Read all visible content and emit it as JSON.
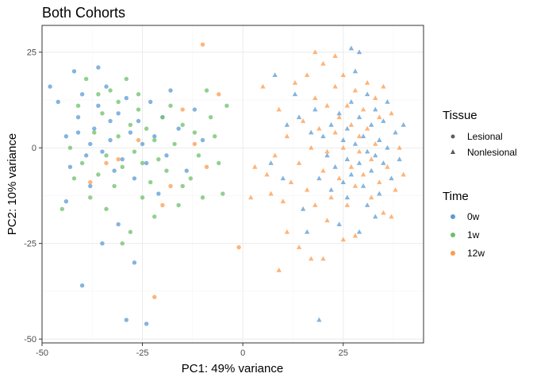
{
  "chart_data": {
    "type": "scatter",
    "title": "Both Cohorts",
    "xlabel": "PC1: 49% variance",
    "ylabel": "PC2: 10% variance",
    "xlim": [
      -50,
      45
    ],
    "ylim": [
      -51,
      32
    ],
    "x_ticks": [
      -50,
      -25,
      0,
      25
    ],
    "y_ticks": [
      -50,
      -25,
      0,
      25
    ],
    "x_tick_labels": [
      "-50",
      "-25",
      "0",
      "25"
    ],
    "y_tick_labels": [
      "-50",
      "-25",
      "0",
      "25"
    ],
    "grid": true,
    "legend_position": "right",
    "legend": {
      "shape_title": "Tissue",
      "shape_entries": [
        {
          "label": "Lesional",
          "shape": "circle"
        },
        {
          "label": "Nonlesional",
          "shape": "triangle"
        }
      ],
      "color_title": "Time",
      "color_entries": [
        {
          "label": "0w",
          "color": "#5b9bd1"
        },
        {
          "label": "1w",
          "color": "#6cc06a"
        },
        {
          "label": "12w",
          "color": "#fd9b4e"
        }
      ]
    },
    "series": [
      {
        "name": "0w",
        "color": "#5b9bd1",
        "points": [
          [
            -48,
            16,
            "circle"
          ],
          [
            -46,
            12,
            "circle"
          ],
          [
            -44,
            3,
            "circle"
          ],
          [
            -43,
            -5,
            "circle"
          ],
          [
            -42,
            20,
            "circle"
          ],
          [
            -41,
            8,
            "circle"
          ],
          [
            -40,
            14,
            "circle"
          ],
          [
            -39,
            -2,
            "circle"
          ],
          [
            -38,
            -10,
            "circle"
          ],
          [
            -37,
            5,
            "circle"
          ],
          [
            -36,
            11,
            "circle"
          ],
          [
            -35,
            -1,
            "circle"
          ],
          [
            -34,
            16,
            "circle"
          ],
          [
            -33,
            2,
            "circle"
          ],
          [
            -32,
            -6,
            "circle"
          ],
          [
            -31,
            9,
            "circle"
          ],
          [
            -30,
            -3,
            "circle"
          ],
          [
            -29,
            13,
            "circle"
          ],
          [
            -28,
            4,
            "circle"
          ],
          [
            -27,
            -8,
            "circle"
          ],
          [
            -26,
            7,
            "circle"
          ],
          [
            -25,
            1,
            "circle"
          ],
          [
            -24,
            -4,
            "circle"
          ],
          [
            -23,
            12,
            "circle"
          ],
          [
            -22,
            3,
            "circle"
          ],
          [
            -21,
            -12,
            "circle"
          ],
          [
            -20,
            8,
            "circle"
          ],
          [
            -19,
            -2,
            "circle"
          ],
          [
            -18,
            15,
            "circle"
          ],
          [
            -16,
            5,
            "circle"
          ],
          [
            -14,
            -6,
            "circle"
          ],
          [
            -12,
            10,
            "circle"
          ],
          [
            -10,
            2,
            "circle"
          ],
          [
            -40,
            -36,
            "circle"
          ],
          [
            -29,
            -45,
            "circle"
          ],
          [
            -24,
            -46,
            "circle"
          ],
          [
            -35,
            -25,
            "circle"
          ],
          [
            -27,
            -30,
            "circle"
          ],
          [
            -31,
            -20,
            "circle"
          ],
          [
            -44,
            -14,
            "circle"
          ],
          [
            -36,
            21,
            "circle"
          ],
          [
            -33,
            7,
            "circle"
          ],
          [
            -38,
            1,
            "circle"
          ],
          [
            -41,
            4,
            "circle"
          ],
          [
            7,
            -4,
            "triangle"
          ],
          [
            10,
            -8,
            "triangle"
          ],
          [
            13,
            14,
            "triangle"
          ],
          [
            15,
            -16,
            "triangle"
          ],
          [
            17,
            4,
            "triangle"
          ],
          [
            18,
            10,
            "triangle"
          ],
          [
            19,
            -8,
            "triangle"
          ],
          [
            20,
            3,
            "triangle"
          ],
          [
            21,
            -2,
            "triangle"
          ],
          [
            22,
            6,
            "triangle"
          ],
          [
            23,
            -5,
            "triangle"
          ],
          [
            24,
            9,
            "triangle"
          ],
          [
            25,
            -9,
            "triangle"
          ],
          [
            25,
            2,
            "triangle"
          ],
          [
            26,
            5,
            "triangle"
          ],
          [
            26,
            -3,
            "triangle"
          ],
          [
            27,
            12,
            "triangle"
          ],
          [
            27,
            -7,
            "triangle"
          ],
          [
            28,
            1,
            "triangle"
          ],
          [
            28,
            20,
            "triangle"
          ],
          [
            29,
            -4,
            "triangle"
          ],
          [
            29,
            8,
            "triangle"
          ],
          [
            30,
            -10,
            "triangle"
          ],
          [
            30,
            3,
            "triangle"
          ],
          [
            31,
            -1,
            "triangle"
          ],
          [
            31,
            14,
            "triangle"
          ],
          [
            32,
            6,
            "triangle"
          ],
          [
            32,
            -6,
            "triangle"
          ],
          [
            33,
            -2,
            "triangle"
          ],
          [
            33,
            10,
            "triangle"
          ],
          [
            34,
            2,
            "triangle"
          ],
          [
            34,
            -12,
            "triangle"
          ],
          [
            35,
            7,
            "triangle"
          ],
          [
            35,
            -4,
            "triangle"
          ],
          [
            36,
            12,
            "triangle"
          ],
          [
            36,
            0,
            "triangle"
          ],
          [
            37,
            -8,
            "triangle"
          ],
          [
            38,
            4,
            "triangle"
          ],
          [
            39,
            -3,
            "triangle"
          ],
          [
            40,
            6,
            "triangle"
          ],
          [
            27,
            26,
            "triangle"
          ],
          [
            29,
            25,
            "triangle"
          ],
          [
            24,
            -20,
            "triangle"
          ],
          [
            29,
            -22,
            "triangle"
          ],
          [
            33,
            -18,
            "triangle"
          ],
          [
            19,
            -45,
            "triangle"
          ],
          [
            16,
            -22,
            "triangle"
          ],
          [
            14,
            8,
            "triangle"
          ],
          [
            11,
            6,
            "triangle"
          ],
          [
            8,
            19,
            "triangle"
          ],
          [
            22,
            -11,
            "triangle"
          ],
          [
            26,
            -13,
            "triangle"
          ],
          [
            31,
            -15,
            "triangle"
          ]
        ]
      },
      {
        "name": "1w",
        "color": "#6cc06a",
        "points": [
          [
            -45,
            -16,
            "circle"
          ],
          [
            -43,
            0,
            "circle"
          ],
          [
            -42,
            -8,
            "circle"
          ],
          [
            -41,
            11,
            "circle"
          ],
          [
            -40,
            -4,
            "circle"
          ],
          [
            -39,
            18,
            "circle"
          ],
          [
            -38,
            -13,
            "circle"
          ],
          [
            -37,
            4,
            "circle"
          ],
          [
            -36,
            -7,
            "circle"
          ],
          [
            -35,
            9,
            "circle"
          ],
          [
            -34,
            -2,
            "circle"
          ],
          [
            -33,
            15,
            "circle"
          ],
          [
            -32,
            -10,
            "circle"
          ],
          [
            -31,
            3,
            "circle"
          ],
          [
            -30,
            -5,
            "circle"
          ],
          [
            -29,
            18,
            "circle"
          ],
          [
            -28,
            6,
            "circle"
          ],
          [
            -27,
            -1,
            "circle"
          ],
          [
            -26,
            10,
            "circle"
          ],
          [
            -25,
            -4,
            "circle"
          ],
          [
            -24,
            5,
            "circle"
          ],
          [
            -23,
            -9,
            "circle"
          ],
          [
            -22,
            2,
            "circle"
          ],
          [
            -21,
            -3,
            "circle"
          ],
          [
            -20,
            8,
            "circle"
          ],
          [
            -19,
            -6,
            "circle"
          ],
          [
            -18,
            11,
            "circle"
          ],
          [
            -17,
            1,
            "circle"
          ],
          [
            -16,
            -15,
            "circle"
          ],
          [
            -15,
            6,
            "circle"
          ],
          [
            -13,
            -8,
            "circle"
          ],
          [
            -12,
            4,
            "circle"
          ],
          [
            -10,
            -13,
            "circle"
          ],
          [
            -8,
            8,
            "circle"
          ],
          [
            -6,
            -4,
            "circle"
          ],
          [
            -4,
            11,
            "circle"
          ],
          [
            -28,
            -22,
            "circle"
          ],
          [
            -34,
            -16,
            "circle"
          ],
          [
            -30,
            -25,
            "circle"
          ],
          [
            -22,
            -18,
            "circle"
          ],
          [
            -25,
            -13,
            "circle"
          ],
          [
            -36,
            14,
            "circle"
          ],
          [
            -31,
            12,
            "circle"
          ],
          [
            -26,
            14,
            "circle"
          ],
          [
            -9,
            15,
            "circle"
          ],
          [
            -11,
            -2,
            "circle"
          ],
          [
            -15,
            -10,
            "circle"
          ],
          [
            -7,
            3,
            "circle"
          ],
          [
            -5,
            -12,
            "circle"
          ]
        ]
      },
      {
        "name": "12w",
        "color": "#fd9b4e",
        "points": [
          [
            -38,
            -9,
            "circle"
          ],
          [
            -31,
            -3,
            "circle"
          ],
          [
            -26,
            2,
            "circle"
          ],
          [
            -20,
            -15,
            "circle"
          ],
          [
            -15,
            10,
            "circle"
          ],
          [
            -12,
            1,
            "circle"
          ],
          [
            -9,
            -5,
            "circle"
          ],
          [
            -6,
            14,
            "circle"
          ],
          [
            -10,
            27,
            "circle"
          ],
          [
            -1,
            -26,
            "circle"
          ],
          [
            -22,
            -39,
            "circle"
          ],
          [
            -18,
            -10,
            "circle"
          ],
          [
            -34,
            -4,
            "circle"
          ],
          [
            2,
            -13,
            "triangle"
          ],
          [
            5,
            16,
            "triangle"
          ],
          [
            6,
            -7,
            "triangle"
          ],
          [
            8,
            -2,
            "triangle"
          ],
          [
            9,
            10,
            "triangle"
          ],
          [
            10,
            -14,
            "triangle"
          ],
          [
            11,
            3,
            "triangle"
          ],
          [
            12,
            -9,
            "triangle"
          ],
          [
            13,
            17,
            "triangle"
          ],
          [
            14,
            -4,
            "triangle"
          ],
          [
            15,
            7,
            "triangle"
          ],
          [
            16,
            -11,
            "triangle"
          ],
          [
            16,
            19,
            "triangle"
          ],
          [
            17,
            0,
            "triangle"
          ],
          [
            18,
            -15,
            "triangle"
          ],
          [
            18,
            13,
            "triangle"
          ],
          [
            19,
            5,
            "triangle"
          ],
          [
            20,
            -6,
            "triangle"
          ],
          [
            20,
            22,
            "triangle"
          ],
          [
            21,
            -1,
            "triangle"
          ],
          [
            21,
            11,
            "triangle"
          ],
          [
            22,
            -13,
            "triangle"
          ],
          [
            23,
            4,
            "triangle"
          ],
          [
            23,
            16,
            "triangle"
          ],
          [
            24,
            -8,
            "triangle"
          ],
          [
            24,
            8,
            "triangle"
          ],
          [
            25,
            0,
            "triangle"
          ],
          [
            25,
            19,
            "triangle"
          ],
          [
            26,
            -15,
            "triangle"
          ],
          [
            26,
            11,
            "triangle"
          ],
          [
            27,
            -5,
            "triangle"
          ],
          [
            27,
            6,
            "triangle"
          ],
          [
            28,
            15,
            "triangle"
          ],
          [
            28,
            -10,
            "triangle"
          ],
          [
            29,
            3,
            "triangle"
          ],
          [
            29,
            -1,
            "triangle"
          ],
          [
            30,
            10,
            "triangle"
          ],
          [
            30,
            -7,
            "triangle"
          ],
          [
            31,
            17,
            "triangle"
          ],
          [
            31,
            5,
            "triangle"
          ],
          [
            32,
            -3,
            "triangle"
          ],
          [
            32,
            -13,
            "triangle"
          ],
          [
            33,
            13,
            "triangle"
          ],
          [
            33,
            1,
            "triangle"
          ],
          [
            34,
            -9,
            "triangle"
          ],
          [
            34,
            8,
            "triangle"
          ],
          [
            35,
            -17,
            "triangle"
          ],
          [
            35,
            16,
            "triangle"
          ],
          [
            36,
            -5,
            "triangle"
          ],
          [
            37,
            -18,
            "triangle"
          ],
          [
            37,
            9,
            "triangle"
          ],
          [
            38,
            -11,
            "triangle"
          ],
          [
            39,
            0,
            "triangle"
          ],
          [
            40,
            -7,
            "triangle"
          ],
          [
            18,
            25,
            "triangle"
          ],
          [
            23,
            24,
            "triangle"
          ],
          [
            21,
            -19,
            "triangle"
          ],
          [
            25,
            -24,
            "triangle"
          ],
          [
            17,
            -29,
            "triangle"
          ],
          [
            14,
            -26,
            "triangle"
          ],
          [
            9,
            -32,
            "triangle"
          ],
          [
            20,
            -29,
            "triangle"
          ],
          [
            28,
            -23,
            "triangle"
          ],
          [
            11,
            -22,
            "triangle"
          ],
          [
            3,
            -5,
            "triangle"
          ],
          [
            7,
            -12,
            "triangle"
          ]
        ]
      }
    ]
  }
}
